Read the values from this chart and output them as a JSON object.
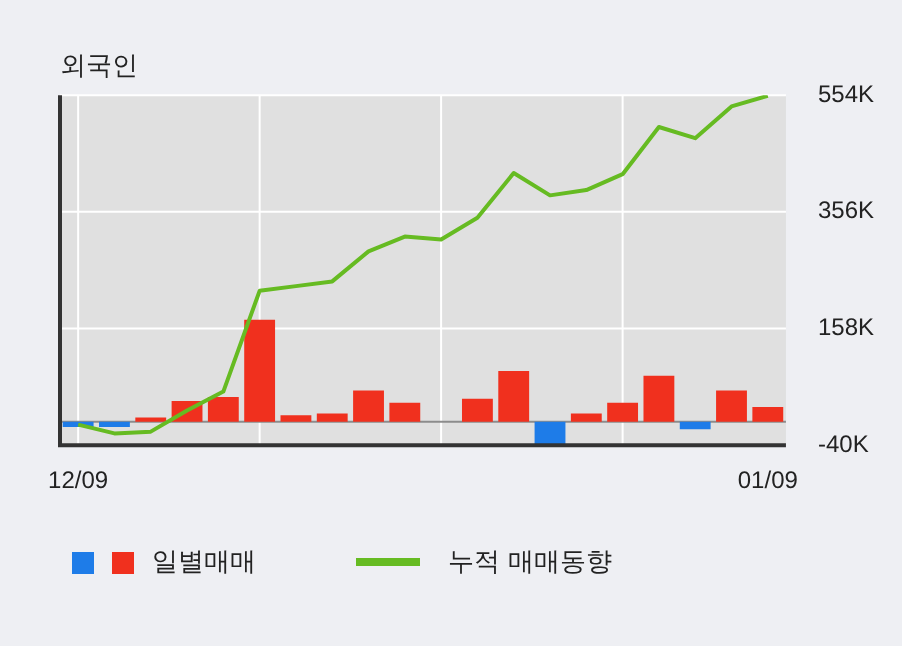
{
  "chart_data": {
    "type": "bar",
    "title": "외국인",
    "categories": [
      "12/09",
      null,
      null,
      null,
      null,
      null,
      null,
      null,
      null,
      null,
      null,
      null,
      null,
      null,
      null,
      null,
      null,
      null,
      null,
      "01/09"
    ],
    "series": [
      {
        "name": "일별매매",
        "colors": [
          "#1e7ce8",
          "#1e7ce8",
          "#f0301e",
          "#f0301e",
          "#f0301e",
          "#f0301e",
          "#f0301e",
          "#f0301e",
          "#f0301e",
          "#f0301e",
          "#f0301e",
          "#f0301e",
          "#f0301e",
          "#1e7ce8",
          "#f0301e",
          "#f0301e",
          "#f0301e",
          "#1e7ce8",
          "#f0301e",
          "#f0301e"
        ],
        "values": [
          -9,
          -9,
          7,
          35,
          42,
          173,
          11,
          14,
          53,
          32,
          0,
          39,
          86,
          -39,
          14,
          32,
          78,
          -13,
          53,
          25
        ]
      },
      {
        "name": "누적 매매동향",
        "type": "line",
        "color": "#66bb22",
        "values": [
          -5,
          -20,
          -17,
          19,
          51,
          222,
          230,
          238,
          289,
          314,
          309,
          346,
          422,
          384,
          393,
          420,
          500,
          481,
          535,
          553
        ]
      }
    ],
    "ylim": [
      -40,
      554
    ],
    "yticks": [
      {
        "value": -40,
        "label": "-40K"
      },
      {
        "value": 158,
        "label": "158K"
      },
      {
        "value": 356,
        "label": "356K"
      },
      {
        "value": 554,
        "label": "554K"
      }
    ],
    "ref_lines": [
      {
        "axis": "y",
        "value": 0,
        "color": "#8c8c8c"
      }
    ],
    "grid": true,
    "legend": "bottom",
    "marker": "none",
    "line_style": "solid"
  }
}
